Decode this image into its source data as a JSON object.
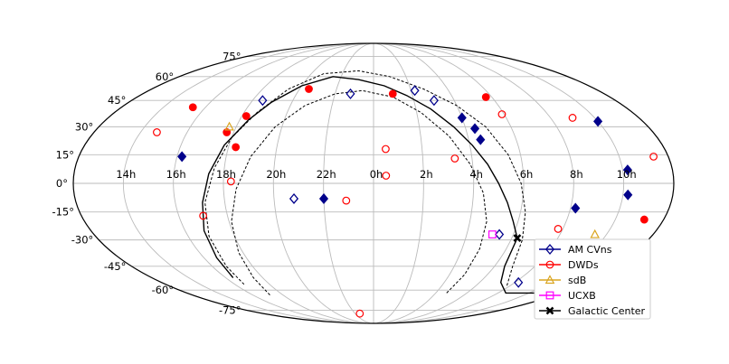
{
  "chart_data": {
    "type": "scatter",
    "projection": "mollweide",
    "grid": true,
    "legend_position": "lower-right",
    "x_tick_labels": [
      "14h",
      "16h",
      "18h",
      "20h",
      "22h",
      "0h",
      "2h",
      "4h",
      "6h",
      "8h",
      "10h"
    ],
    "y_tick_labels": [
      "75°",
      "60°",
      "45°",
      "30°",
      "15°",
      "0°",
      "-15°",
      "-30°",
      "-45°",
      "-60°",
      "-75°"
    ],
    "series": [
      {
        "name": "AM CVns",
        "color": "#00008b",
        "marker": "diamond",
        "filled_points": [
          {
            "ra_h": 14.0,
            "dec": 33
          },
          {
            "ra_h": 13.8,
            "dec": 7
          },
          {
            "ra_h": 13.8,
            "dec": -6
          },
          {
            "ra_h": 15.8,
            "dec": -13
          },
          {
            "ra_h": 14.6,
            "dec": -37
          },
          {
            "ra_h": 19.6,
            "dec": 29
          },
          {
            "ra_h": 20.0,
            "dec": 35
          },
          {
            "ra_h": 19.5,
            "dec": 23
          },
          {
            "ra_h": 2.0,
            "dec": -8
          },
          {
            "ra_h": 7.8,
            "dec": 14
          }
        ],
        "open_points": [
          {
            "ra_h": 21.8,
            "dec": 51
          },
          {
            "ra_h": 21.0,
            "dec": 45
          },
          {
            "ra_h": 1.2,
            "dec": 49
          },
          {
            "ra_h": 5.5,
            "dec": 45
          },
          {
            "ra_h": 3.2,
            "dec": -8
          },
          {
            "ra_h": 18.6,
            "dec": -27
          },
          {
            "ra_h": 15.8,
            "dec": -55
          }
        ]
      },
      {
        "name": "DWDs",
        "color": "#ff0000",
        "marker": "circle",
        "filled_points": [
          {
            "ra_h": 18.3,
            "dec": 47
          },
          {
            "ra_h": 23.0,
            "dec": 49
          },
          {
            "ra_h": 3.5,
            "dec": 52
          },
          {
            "ra_h": 5.8,
            "dec": 36
          },
          {
            "ra_h": 6.3,
            "dec": 27
          },
          {
            "ra_h": 5.7,
            "dec": 19
          },
          {
            "ra_h": 8.6,
            "dec": 41
          },
          {
            "ra_h": 12.8,
            "dec": -19
          }
        ],
        "open_points": [
          {
            "ra_h": 15.0,
            "dec": 35
          },
          {
            "ra_h": 18.1,
            "dec": 37
          },
          {
            "ra_h": 12.6,
            "dec": 14
          },
          {
            "ra_h": 20.7,
            "dec": 13
          },
          {
            "ra_h": 23.5,
            "dec": 18
          },
          {
            "ra_h": 23.5,
            "dec": 4
          },
          {
            "ra_h": 5.7,
            "dec": 1
          },
          {
            "ra_h": 9.3,
            "dec": 27
          },
          {
            "ra_h": 1.1,
            "dec": -9
          },
          {
            "ra_h": 7.0,
            "dec": -17
          },
          {
            "ra_h": 16.2,
            "dec": -24
          },
          {
            "ra_h": 1.5,
            "dec": -78
          }
        ]
      },
      {
        "name": "sdB",
        "color": "#daa520",
        "marker": "triangle",
        "filled_points": [],
        "open_points": [
          {
            "ra_h": 14.5,
            "dec": -27
          },
          {
            "ra_h": 6.3,
            "dec": 30
          }
        ]
      },
      {
        "name": "UCXB",
        "color": "#ff00ff",
        "marker": "square",
        "filled_points": [],
        "open_points": [
          {
            "ra_h": 18.9,
            "dec": -27
          }
        ]
      },
      {
        "name": "Galactic Center",
        "color": "#000000",
        "marker": "x",
        "filled_points": [
          {
            "ra_h": 17.76,
            "dec": -29
          }
        ],
        "open_points": []
      }
    ],
    "galactic_plane": [
      {
        "ra_h": 17.76,
        "dec": -29
      },
      {
        "ra_h": 18.2,
        "dec": -20
      },
      {
        "ra_h": 18.6,
        "dec": -10
      },
      {
        "ra_h": 19.0,
        "dec": 0
      },
      {
        "ra_h": 19.4,
        "dec": 10
      },
      {
        "ra_h": 19.9,
        "dec": 20
      },
      {
        "ra_h": 20.5,
        "dec": 30
      },
      {
        "ra_h": 21.3,
        "dec": 40
      },
      {
        "ra_h": 22.3,
        "dec": 48
      },
      {
        "ra_h": 23.4,
        "dec": 54
      },
      {
        "ra_h": 0.9,
        "dec": 58
      },
      {
        "ra_h": 2.5,
        "dec": 60
      },
      {
        "ra_h": 4.0,
        "dec": 54
      },
      {
        "ra_h": 5.0,
        "dec": 44
      },
      {
        "ra_h": 5.6,
        "dec": 34
      },
      {
        "ra_h": 6.2,
        "dec": 20
      },
      {
        "ra_h": 6.6,
        "dec": 5
      },
      {
        "ra_h": 6.9,
        "dec": -10
      },
      {
        "ra_h": 7.2,
        "dec": -25
      },
      {
        "ra_h": 7.4,
        "dec": -40
      },
      {
        "ra_h": 7.6,
        "dec": -52
      }
    ],
    "galactic_plane_start": [
      {
        "ra_h": 13.4,
        "dec": -62
      },
      {
        "ra_h": 15.5,
        "dec": -62
      },
      {
        "ra_h": 16.8,
        "dec": -55
      },
      {
        "ra_h": 17.5,
        "dec": -45
      },
      {
        "ra_h": 17.76,
        "dec": -29
      }
    ],
    "galactic_band_upper": [
      {
        "ra_h": 16.2,
        "dec": -57
      },
      {
        "ra_h": 17.1,
        "dec": -45
      },
      {
        "ra_h": 17.5,
        "dec": -30
      },
      {
        "ra_h": 17.8,
        "dec": -15
      },
      {
        "ra_h": 18.1,
        "dec": 0
      },
      {
        "ra_h": 18.5,
        "dec": 15
      },
      {
        "ra_h": 19.1,
        "dec": 30
      },
      {
        "ra_h": 20.0,
        "dec": 42
      },
      {
        "ra_h": 21.3,
        "dec": 52
      },
      {
        "ra_h": 23.0,
        "dec": 60
      },
      {
        "ra_h": 1.0,
        "dec": 64
      },
      {
        "ra_h": 3.2,
        "dec": 62
      },
      {
        "ra_h": 4.6,
        "dec": 52
      },
      {
        "ra_h": 5.4,
        "dec": 38
      },
      {
        "ra_h": 6.0,
        "dec": 24
      },
      {
        "ra_h": 6.4,
        "dec": 8
      },
      {
        "ra_h": 6.8,
        "dec": -10
      },
      {
        "ra_h": 7.1,
        "dec": -28
      },
      {
        "ra_h": 7.3,
        "dec": -45
      },
      {
        "ra_h": 7.5,
        "dec": -57
      }
    ],
    "galactic_band_lower": [
      {
        "ra_h": 19.3,
        "dec": -62
      },
      {
        "ra_h": 19.2,
        "dec": -50
      },
      {
        "ra_h": 19.2,
        "dec": -35
      },
      {
        "ra_h": 19.3,
        "dec": -20
      },
      {
        "ra_h": 19.6,
        "dec": -5
      },
      {
        "ra_h": 20.1,
        "dec": 10
      },
      {
        "ra_h": 20.8,
        "dec": 25
      },
      {
        "ra_h": 21.8,
        "dec": 38
      },
      {
        "ra_h": 23.0,
        "dec": 47
      },
      {
        "ra_h": 0.6,
        "dec": 51
      },
      {
        "ra_h": 2.0,
        "dec": 49
      },
      {
        "ra_h": 3.3,
        "dec": 42
      },
      {
        "ra_h": 4.3,
        "dec": 30
      },
      {
        "ra_h": 5.0,
        "dec": 14
      },
      {
        "ra_h": 5.5,
        "dec": -3
      },
      {
        "ra_h": 5.9,
        "dec": -20
      },
      {
        "ra_h": 6.2,
        "dec": -37
      },
      {
        "ra_h": 6.5,
        "dec": -52
      },
      {
        "ra_h": 6.9,
        "dec": -64
      }
    ]
  }
}
